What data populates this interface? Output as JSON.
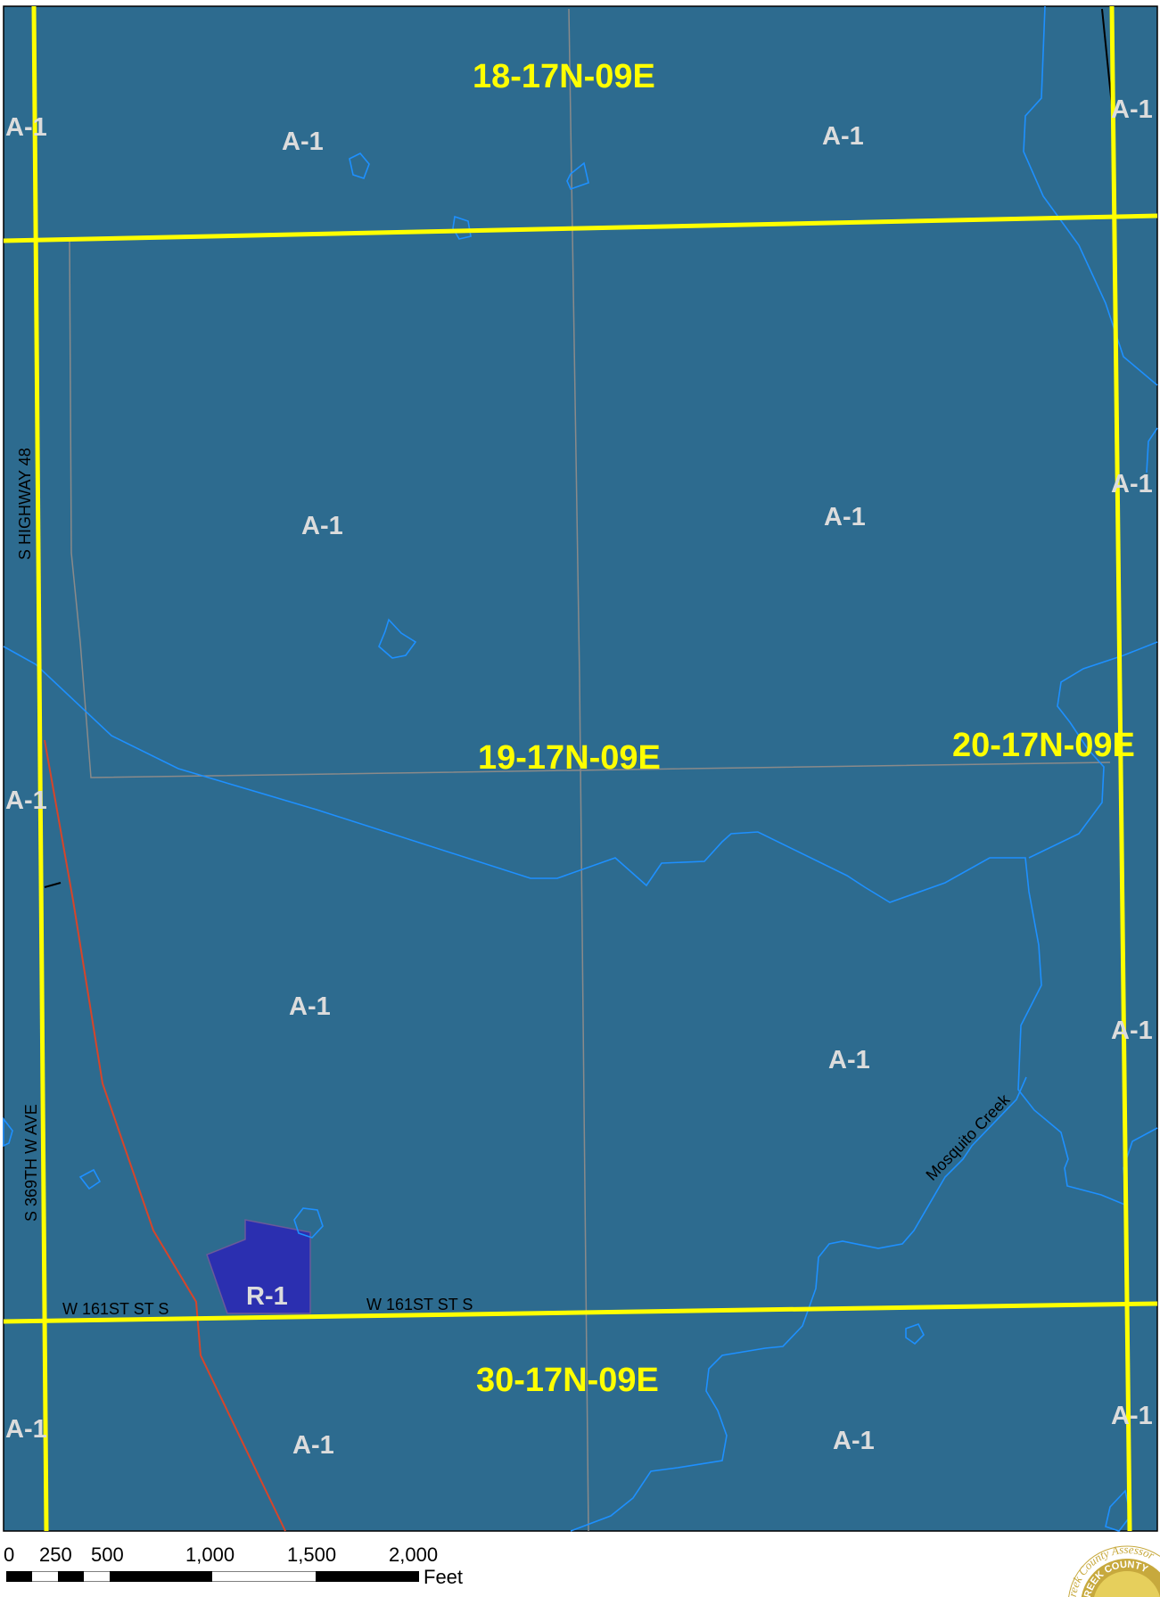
{
  "colors": {
    "map_fill": "#2d6b8f",
    "section_line": "#ffff00",
    "stream": "#1e90ff",
    "parcel_line": "#8a8a8a",
    "rail_line": "#d6452a",
    "zone_r1_fill": "#2b2fb0",
    "section_label": "#ffff00",
    "zone_label": "#dcdcdc"
  },
  "map": {
    "sections": [
      "18-17N-09E",
      "19-17N-09E",
      "20-17N-09E",
      "30-17N-09E"
    ],
    "zones": [
      "A-1",
      "R-1"
    ],
    "roads": [
      "S HIGHWAY 48",
      "S 369TH W AVE",
      "W 161ST ST S",
      "W 161ST ST S"
    ],
    "creek": "Mosquito Creek"
  },
  "scale": {
    "ticks": [
      "0",
      "250",
      "500",
      "1,000",
      "1,500",
      "2,000"
    ],
    "unit": "Feet"
  },
  "logo": {
    "text": "Creek County Assessor",
    "inner_text": "CREEK COUNTY"
  }
}
